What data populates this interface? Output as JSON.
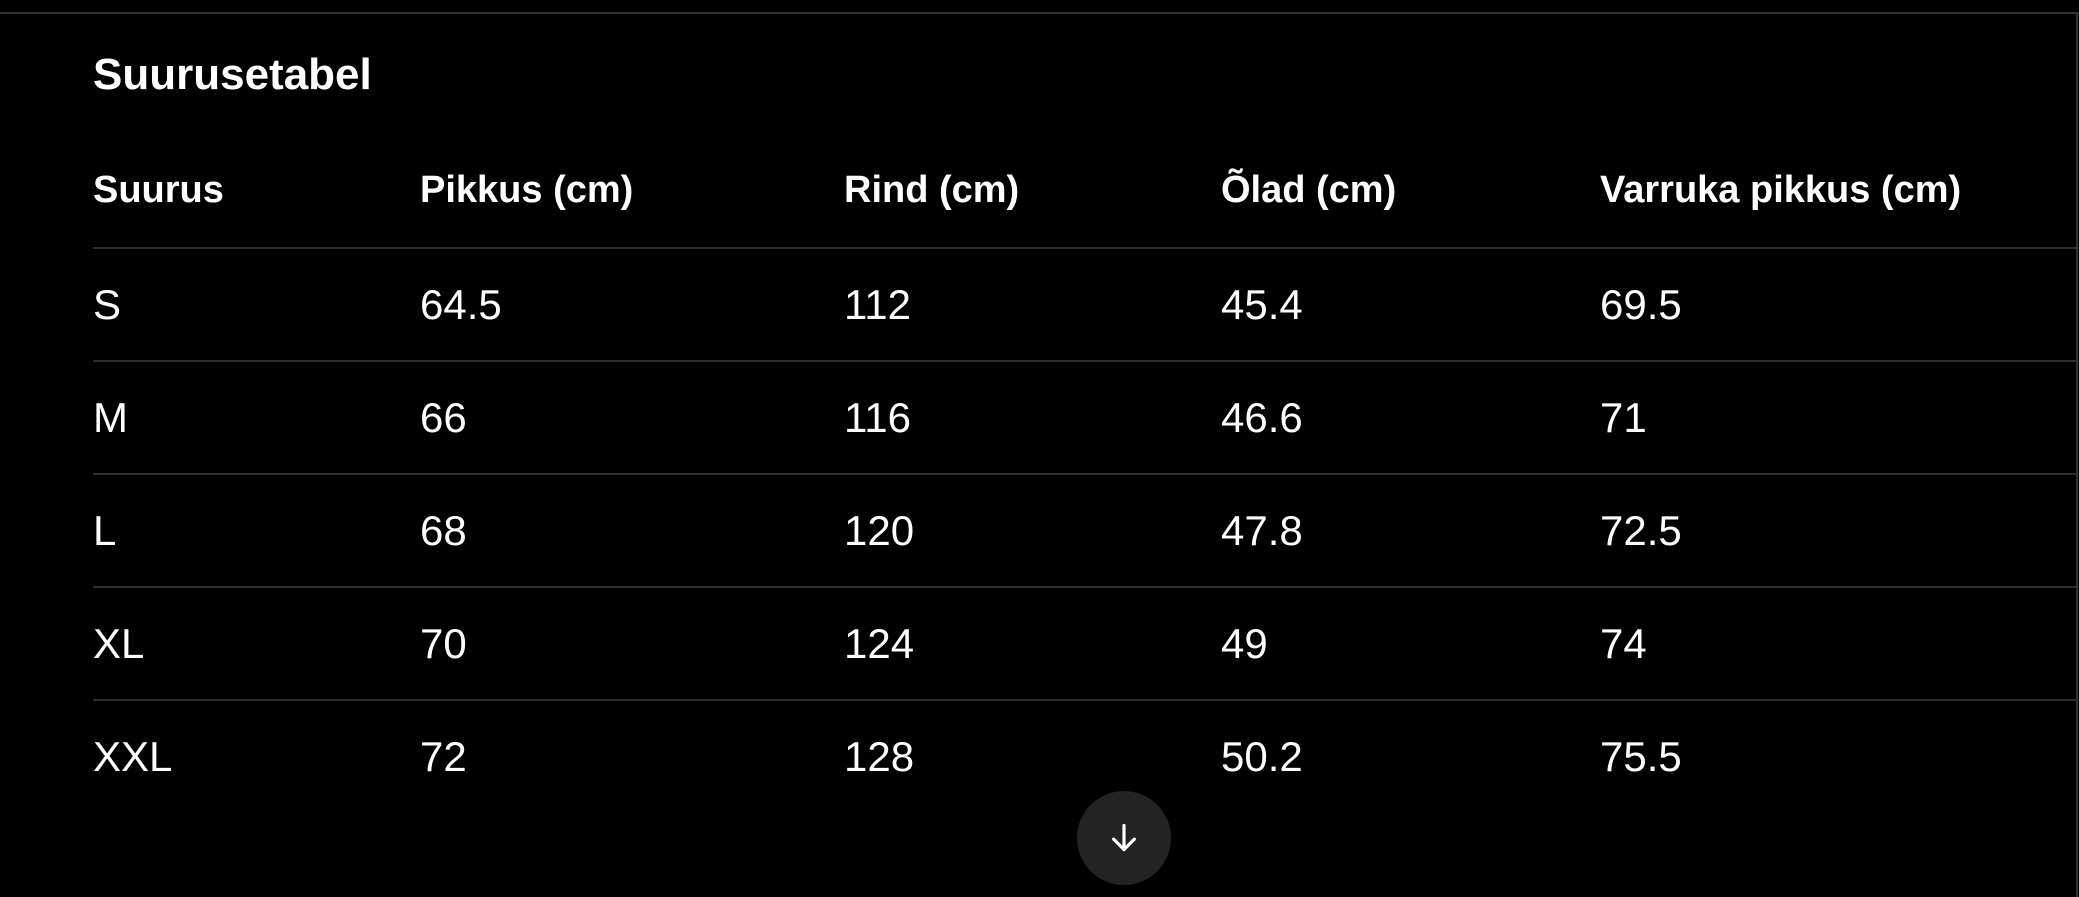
{
  "title": "Suurusetabel",
  "table": {
    "columns": [
      "Suurus",
      "Pikkus (cm)",
      "Rind (cm)",
      "Õlad (cm)",
      "Varruka pikkus (cm)"
    ],
    "rows": [
      [
        "S",
        "64.5",
        "112",
        "45.4",
        "69.5"
      ],
      [
        "M",
        "66",
        "116",
        "46.6",
        "71"
      ],
      [
        "L",
        "68",
        "120",
        "47.8",
        "72.5"
      ],
      [
        "XL",
        "70",
        "124",
        "49",
        "74"
      ],
      [
        "XXL",
        "72",
        "128",
        "50.2",
        "75.5"
      ]
    ]
  },
  "scroll_button": {
    "icon": "arrow-down"
  },
  "colors": {
    "background": "#000000",
    "text": "#ffffff",
    "divider": "#2e2e2e",
    "frame_line": "#323232",
    "button_bg": "#232323"
  }
}
